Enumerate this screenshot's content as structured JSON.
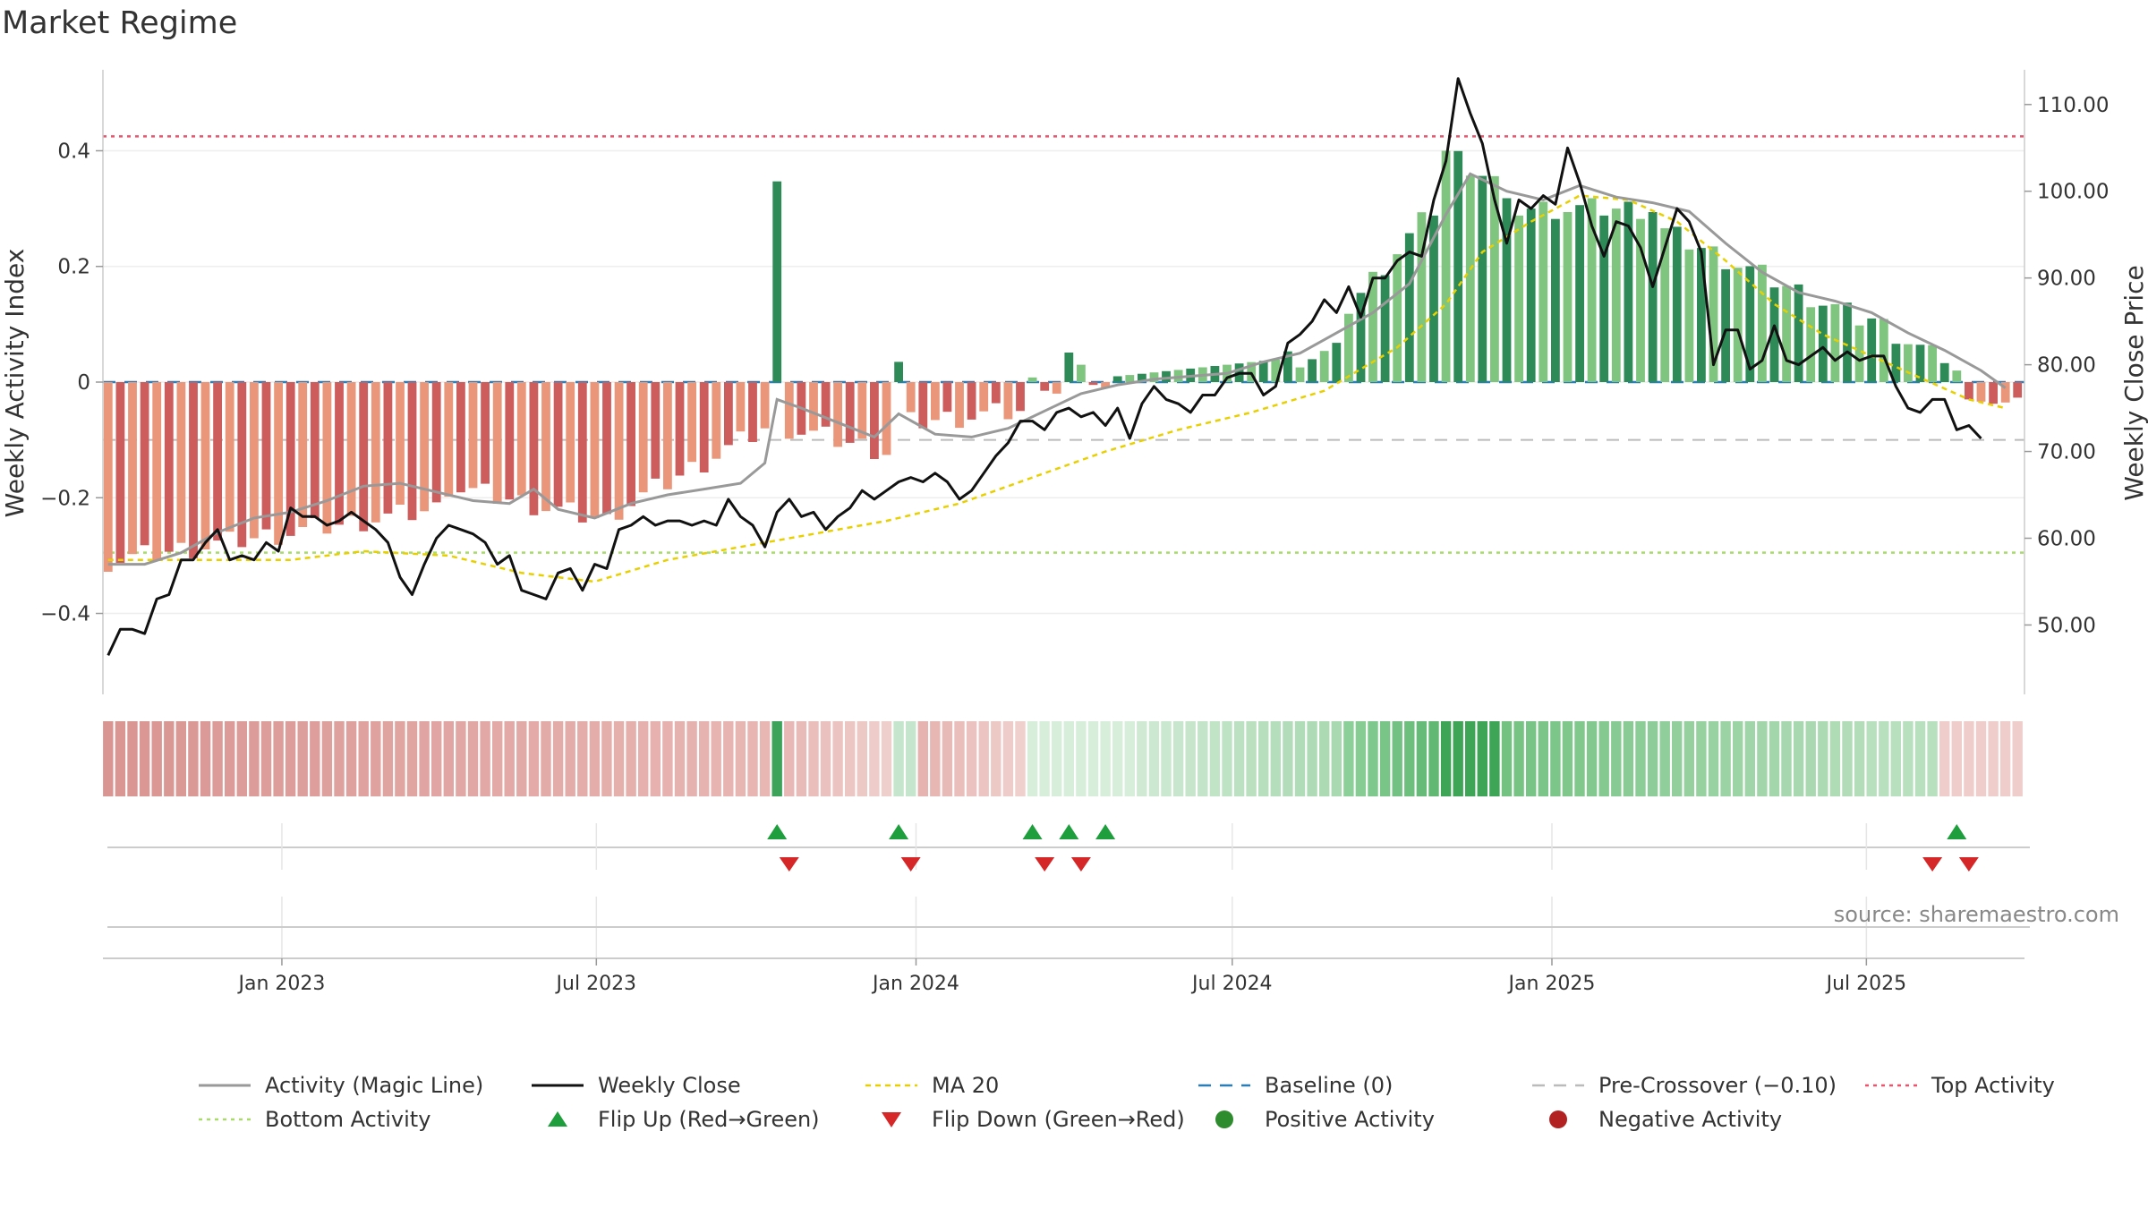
{
  "title": "Market Regime",
  "source": "source: sharemaestro.com",
  "colors": {
    "green_dark": "#2e8b57",
    "green_light": "#7fc47f",
    "red_dark": "#cd5c5c",
    "red_light": "#e9967a",
    "close": "#111111",
    "magic": "#999999",
    "ma20": "#e8d000",
    "baseline": "#2a7fb8",
    "precross": "#bbbbbb",
    "top": "#e8556d",
    "bottom": "#a8db6a",
    "flip_up": "#1e9e3c",
    "flip_down": "#d62728"
  },
  "chart_data": {
    "type": "bar",
    "title": "Market Regime",
    "ylabel_left": "Weekly Activity Index",
    "ylabel_right": "Weekly Close Price",
    "ylim_left": [
      -0.54,
      0.54
    ],
    "ylim_right": [
      42,
      114
    ],
    "yticks_left": [
      {
        "v": 0.4,
        "label": "0.4"
      },
      {
        "v": 0.2,
        "label": "0.2"
      },
      {
        "v": 0,
        "label": "0"
      },
      {
        "v": -0.2,
        "label": "−0.2"
      },
      {
        "v": -0.4,
        "label": "−0.4"
      }
    ],
    "yticks_right": [
      {
        "v": 110,
        "label": "110.00"
      },
      {
        "v": 100,
        "label": "100.00"
      },
      {
        "v": 90,
        "label": "90.00"
      },
      {
        "v": 80,
        "label": "80.00"
      },
      {
        "v": 70,
        "label": "70.00"
      },
      {
        "v": 60,
        "label": "60.00"
      },
      {
        "v": 50,
        "label": "50.00"
      }
    ],
    "xticks": [
      {
        "date": "2023-01-01",
        "label": "Jan 2023"
      },
      {
        "date": "2023-07-01",
        "label": "Jul 2023"
      },
      {
        "date": "2024-01-01",
        "label": "Jan 2024"
      },
      {
        "date": "2024-07-01",
        "label": "Jul 2024"
      },
      {
        "date": "2025-01-01",
        "label": "Jan 2025"
      },
      {
        "date": "2025-07-01",
        "label": "Jul 2025"
      }
    ],
    "xrange": [
      "2022-09-20",
      "2025-09-30"
    ],
    "top_activity": 0.425,
    "bottom_activity": -0.295,
    "baseline": 0,
    "pre_crossover": -0.1,
    "activity_segments": [
      {
        "from": "2022-09-23",
        "to": "2023-03-31",
        "start": -0.31,
        "end": -0.22
      },
      {
        "from": "2023-04-07",
        "to": "2023-07-07",
        "start": -0.18,
        "end": -0.24
      },
      {
        "from": "2023-07-14",
        "to": "2023-10-06",
        "start": -0.22,
        "end": -0.08
      },
      {
        "from": "2023-10-13",
        "to": "2023-10-13",
        "start": 0.335,
        "end": 0.335
      },
      {
        "from": "2023-10-20",
        "to": "2023-12-15",
        "start": -0.08,
        "end": -0.12
      },
      {
        "from": "2023-12-22",
        "to": "2023-12-22",
        "start": 0.035,
        "end": 0.035
      },
      {
        "from": "2023-12-29",
        "to": "2024-03-01",
        "start": -0.07,
        "end": -0.05
      },
      {
        "from": "2024-03-08",
        "to": "2024-03-08",
        "start": 0.008,
        "end": 0.008
      },
      {
        "from": "2024-03-15",
        "to": "2024-03-22",
        "start": -0.015,
        "end": -0.02
      },
      {
        "from": "2024-03-29",
        "to": "2024-04-05",
        "start": 0.045,
        "end": 0.03
      },
      {
        "from": "2024-04-12",
        "to": "2024-04-19",
        "start": -0.005,
        "end": -0.01
      },
      {
        "from": "2024-04-26",
        "to": "2024-08-30",
        "start": 0.01,
        "end": 0.05
      },
      {
        "from": "2024-09-06",
        "to": "2024-10-25",
        "start": 0.13,
        "end": 0.3
      },
      {
        "from": "2024-11-01",
        "to": "2024-11-29",
        "start": 0.4,
        "end": 0.35
      },
      {
        "from": "2024-12-06",
        "to": "2025-02-28",
        "start": 0.3,
        "end": 0.3
      },
      {
        "from": "2025-03-07",
        "to": "2025-06-27",
        "start": 0.26,
        "end": 0.11
      },
      {
        "from": "2025-07-04",
        "to": "2025-08-22",
        "start": 0.11,
        "end": 0.02
      },
      {
        "from": "2025-08-29",
        "to": "2025-09-26",
        "start": -0.03,
        "end": -0.045
      }
    ],
    "weekly_close": [
      [
        "2022-09-23",
        46.5
      ],
      [
        "2022-09-30",
        49.5
      ],
      [
        "2022-10-07",
        49.5
      ],
      [
        "2022-10-14",
        49
      ],
      [
        "2022-10-21",
        53
      ],
      [
        "2022-10-28",
        53.5
      ],
      [
        "2022-11-04",
        57.5
      ],
      [
        "2022-11-11",
        57.5
      ],
      [
        "2022-11-18",
        59.5
      ],
      [
        "2022-11-25",
        61
      ],
      [
        "2022-12-02",
        57.5
      ],
      [
        "2022-12-09",
        58
      ],
      [
        "2022-12-16",
        57.5
      ],
      [
        "2022-12-23",
        59.5
      ],
      [
        "2022-12-30",
        58.5
      ],
      [
        "2023-01-06",
        63.5
      ],
      [
        "2023-01-13",
        62.5
      ],
      [
        "2023-01-20",
        62.5
      ],
      [
        "2023-01-27",
        61.5
      ],
      [
        "2023-02-03",
        62
      ],
      [
        "2023-02-10",
        63
      ],
      [
        "2023-02-17",
        62
      ],
      [
        "2023-02-24",
        61
      ],
      [
        "2023-03-03",
        59.5
      ],
      [
        "2023-03-10",
        55.5
      ],
      [
        "2023-03-17",
        53.5
      ],
      [
        "2023-03-24",
        57
      ],
      [
        "2023-03-31",
        60
      ],
      [
        "2023-04-07",
        61.5
      ],
      [
        "2023-04-14",
        61
      ],
      [
        "2023-04-21",
        60.5
      ],
      [
        "2023-04-28",
        59.5
      ],
      [
        "2023-05-05",
        57
      ],
      [
        "2023-05-12",
        58
      ],
      [
        "2023-05-19",
        54
      ],
      [
        "2023-05-26",
        53.5
      ],
      [
        "2023-06-02",
        53
      ],
      [
        "2023-06-09",
        56
      ],
      [
        "2023-06-16",
        56.5
      ],
      [
        "2023-06-23",
        54
      ],
      [
        "2023-06-30",
        57
      ],
      [
        "2023-07-07",
        56.5
      ],
      [
        "2023-07-14",
        61
      ],
      [
        "2023-07-21",
        61.5
      ],
      [
        "2023-07-28",
        62.5
      ],
      [
        "2023-08-04",
        61.5
      ],
      [
        "2023-08-11",
        62
      ],
      [
        "2023-08-18",
        62
      ],
      [
        "2023-08-25",
        61.5
      ],
      [
        "2023-09-01",
        62
      ],
      [
        "2023-09-08",
        61.5
      ],
      [
        "2023-09-15",
        64.5
      ],
      [
        "2023-09-22",
        62.5
      ],
      [
        "2023-09-29",
        61.5
      ],
      [
        "2023-10-06",
        59
      ],
      [
        "2023-10-13",
        63
      ],
      [
        "2023-10-20",
        64.5
      ],
      [
        "2023-10-27",
        62.5
      ],
      [
        "2023-11-03",
        63
      ],
      [
        "2023-11-10",
        61
      ],
      [
        "2023-11-17",
        62.5
      ],
      [
        "2023-11-24",
        63.5
      ],
      [
        "2023-12-01",
        65.5
      ],
      [
        "2023-12-08",
        64.5
      ],
      [
        "2023-12-15",
        65.5
      ],
      [
        "2023-12-22",
        66.5
      ],
      [
        "2023-12-29",
        67
      ],
      [
        "2024-01-05",
        66.5
      ],
      [
        "2024-01-12",
        67.5
      ],
      [
        "2024-01-19",
        66.5
      ],
      [
        "2024-01-26",
        64.5
      ],
      [
        "2024-02-02",
        65.5
      ],
      [
        "2024-02-09",
        67.5
      ],
      [
        "2024-02-16",
        69.5
      ],
      [
        "2024-02-23",
        71
      ],
      [
        "2024-03-01",
        73.5
      ],
      [
        "2024-03-08",
        73.5
      ],
      [
        "2024-03-15",
        72.5
      ],
      [
        "2024-03-22",
        74.5
      ],
      [
        "2024-03-29",
        75
      ],
      [
        "2024-04-05",
        74
      ],
      [
        "2024-04-12",
        74.5
      ],
      [
        "2024-04-19",
        73
      ],
      [
        "2024-04-26",
        75
      ],
      [
        "2024-05-03",
        71.5
      ],
      [
        "2024-05-10",
        75.5
      ],
      [
        "2024-05-17",
        77.5
      ],
      [
        "2024-05-24",
        76
      ],
      [
        "2024-05-31",
        75.5
      ],
      [
        "2024-06-07",
        74.5
      ],
      [
        "2024-06-14",
        76.5
      ],
      [
        "2024-06-21",
        76.5
      ],
      [
        "2024-06-28",
        78.5
      ],
      [
        "2024-07-05",
        79
      ],
      [
        "2024-07-12",
        79
      ],
      [
        "2024-07-19",
        76.5
      ],
      [
        "2024-07-26",
        77.5
      ],
      [
        "2024-08-02",
        82.5
      ],
      [
        "2024-08-09",
        83.5
      ],
      [
        "2024-08-16",
        85
      ],
      [
        "2024-08-23",
        87.5
      ],
      [
        "2024-08-30",
        86
      ],
      [
        "2024-09-06",
        89
      ],
      [
        "2024-09-13",
        85.5
      ],
      [
        "2024-09-20",
        90
      ],
      [
        "2024-09-27",
        90
      ],
      [
        "2024-10-04",
        92
      ],
      [
        "2024-10-11",
        93
      ],
      [
        "2024-10-18",
        92.5
      ],
      [
        "2024-10-25",
        99
      ],
      [
        "2024-11-01",
        103.5
      ],
      [
        "2024-11-08",
        113
      ],
      [
        "2024-11-15",
        109
      ],
      [
        "2024-11-22",
        105.5
      ],
      [
        "2024-11-29",
        99
      ],
      [
        "2024-12-06",
        94
      ],
      [
        "2024-12-13",
        99
      ],
      [
        "2024-12-20",
        98
      ],
      [
        "2024-12-27",
        99.5
      ],
      [
        "2025-01-03",
        98.5
      ],
      [
        "2025-01-10",
        105
      ],
      [
        "2025-01-17",
        101
      ],
      [
        "2025-01-24",
        96
      ],
      [
        "2025-01-31",
        92.5
      ],
      [
        "2025-02-07",
        96.5
      ],
      [
        "2025-02-14",
        96
      ],
      [
        "2025-02-21",
        93.5
      ],
      [
        "2025-02-28",
        89
      ],
      [
        "2025-03-07",
        93.5
      ],
      [
        "2025-03-14",
        98
      ],
      [
        "2025-03-21",
        96.5
      ],
      [
        "2025-03-28",
        93
      ],
      [
        "2025-04-04",
        80
      ],
      [
        "2025-04-11",
        84
      ],
      [
        "2025-04-18",
        84
      ],
      [
        "2025-04-25",
        79.5
      ],
      [
        "2025-05-02",
        80.5
      ],
      [
        "2025-05-09",
        84.5
      ],
      [
        "2025-05-16",
        80.5
      ],
      [
        "2025-05-23",
        80
      ],
      [
        "2025-05-30",
        81
      ],
      [
        "2025-06-06",
        82
      ],
      [
        "2025-06-13",
        80.5
      ],
      [
        "2025-06-20",
        81.5
      ],
      [
        "2025-06-27",
        80.5
      ],
      [
        "2025-07-04",
        81
      ],
      [
        "2025-07-11",
        81
      ],
      [
        "2025-07-18",
        77.5
      ],
      [
        "2025-07-25",
        75
      ],
      [
        "2025-08-01",
        74.5
      ],
      [
        "2025-08-08",
        76
      ],
      [
        "2025-08-15",
        76
      ],
      [
        "2025-08-22",
        72.5
      ],
      [
        "2025-08-29",
        73
      ],
      [
        "2025-09-05",
        71.5
      ]
    ],
    "magic_line": [
      [
        "2022-09-23",
        -0.315
      ],
      [
        "2022-10-14",
        -0.315
      ],
      [
        "2022-11-04",
        -0.295
      ],
      [
        "2022-11-25",
        -0.26
      ],
      [
        "2022-12-16",
        -0.235
      ],
      [
        "2023-01-06",
        -0.225
      ],
      [
        "2023-01-27",
        -0.205
      ],
      [
        "2023-02-17",
        -0.18
      ],
      [
        "2023-03-10",
        -0.175
      ],
      [
        "2023-03-31",
        -0.19
      ],
      [
        "2023-04-21",
        -0.205
      ],
      [
        "2023-05-12",
        -0.21
      ],
      [
        "2023-05-26",
        -0.185
      ],
      [
        "2023-06-09",
        -0.22
      ],
      [
        "2023-06-30",
        -0.235
      ],
      [
        "2023-07-21",
        -0.21
      ],
      [
        "2023-08-11",
        -0.195
      ],
      [
        "2023-09-01",
        -0.185
      ],
      [
        "2023-09-22",
        -0.175
      ],
      [
        "2023-10-06",
        -0.14
      ],
      [
        "2023-10-13",
        -0.03
      ],
      [
        "2023-10-27",
        -0.045
      ],
      [
        "2023-11-17",
        -0.07
      ],
      [
        "2023-12-08",
        -0.095
      ],
      [
        "2023-12-22",
        -0.055
      ],
      [
        "2024-01-12",
        -0.09
      ],
      [
        "2024-02-02",
        -0.095
      ],
      [
        "2024-02-23",
        -0.08
      ],
      [
        "2024-03-15",
        -0.05
      ],
      [
        "2024-04-05",
        -0.02
      ],
      [
        "2024-04-26",
        -0.005
      ],
      [
        "2024-05-17",
        0.005
      ],
      [
        "2024-06-07",
        0.01
      ],
      [
        "2024-06-28",
        0.015
      ],
      [
        "2024-07-19",
        0.035
      ],
      [
        "2024-08-09",
        0.05
      ],
      [
        "2024-08-30",
        0.085
      ],
      [
        "2024-09-20",
        0.12
      ],
      [
        "2024-10-11",
        0.17
      ],
      [
        "2024-11-01",
        0.29
      ],
      [
        "2024-11-15",
        0.36
      ],
      [
        "2024-12-06",
        0.33
      ],
      [
        "2024-12-27",
        0.315
      ],
      [
        "2025-01-17",
        0.34
      ],
      [
        "2025-02-07",
        0.32
      ],
      [
        "2025-02-28",
        0.31
      ],
      [
        "2025-03-21",
        0.295
      ],
      [
        "2025-04-11",
        0.24
      ],
      [
        "2025-05-02",
        0.19
      ],
      [
        "2025-05-23",
        0.155
      ],
      [
        "2025-06-13",
        0.14
      ],
      [
        "2025-07-04",
        0.12
      ],
      [
        "2025-07-25",
        0.085
      ],
      [
        "2025-08-15",
        0.055
      ],
      [
        "2025-09-05",
        0.02
      ],
      [
        "2025-09-19",
        -0.01
      ]
    ],
    "ma20": [
      [
        "2022-09-23",
        57.5
      ],
      [
        "2022-11-04",
        57.5
      ],
      [
        "2023-01-06",
        57.5
      ],
      [
        "2023-02-17",
        58.5
      ],
      [
        "2023-04-07",
        58
      ],
      [
        "2023-05-19",
        56
      ],
      [
        "2023-06-30",
        55
      ],
      [
        "2023-08-11",
        57.5
      ],
      [
        "2023-09-22",
        59
      ],
      [
        "2023-11-03",
        60.5
      ],
      [
        "2023-12-15",
        62
      ],
      [
        "2024-01-26",
        64
      ],
      [
        "2024-03-08",
        67
      ],
      [
        "2024-04-19",
        70
      ],
      [
        "2024-05-31",
        72.5
      ],
      [
        "2024-07-12",
        74.5
      ],
      [
        "2024-08-23",
        77
      ],
      [
        "2024-10-04",
        82
      ],
      [
        "2024-11-01",
        87
      ],
      [
        "2024-11-22",
        93
      ],
      [
        "2024-12-20",
        96.5
      ],
      [
        "2025-01-17",
        99.5
      ],
      [
        "2025-02-14",
        99
      ],
      [
        "2025-03-14",
        96.5
      ],
      [
        "2025-04-11",
        92
      ],
      [
        "2025-05-09",
        87
      ],
      [
        "2025-06-06",
        83.5
      ],
      [
        "2025-07-04",
        81
      ],
      [
        "2025-08-01",
        78.5
      ],
      [
        "2025-08-29",
        76
      ],
      [
        "2025-09-19",
        75
      ]
    ],
    "regime_strip": [
      {
        "from": "2022-09-23",
        "to": "2023-10-06",
        "color": "#d99592",
        "to_color": "#e8b6b3"
      },
      {
        "from": "2023-10-13",
        "to": "2023-10-13",
        "color": "#3da35a"
      },
      {
        "from": "2023-10-20",
        "to": "2023-12-15",
        "color": "#e7b8b5",
        "to_color": "#efcfcc"
      },
      {
        "from": "2023-12-22",
        "to": "2023-12-29",
        "color": "#c5e6cc"
      },
      {
        "from": "2024-01-05",
        "to": "2024-03-01",
        "color": "#e6b3b0",
        "to_color": "#efd0cd"
      },
      {
        "from": "2024-03-08",
        "to": "2024-05-03",
        "color": "#d7efda"
      },
      {
        "from": "2024-05-10",
        "to": "2024-08-30",
        "color": "#cfe9d3",
        "to_color": "#a9d9b1"
      },
      {
        "from": "2024-09-06",
        "to": "2024-10-25",
        "color": "#8ccf98",
        "to_color": "#60b873"
      },
      {
        "from": "2024-11-01",
        "to": "2024-11-29",
        "color": "#3ea557"
      },
      {
        "from": "2024-12-06",
        "to": "2025-06-27",
        "color": "#74c282",
        "to_color": "#b3ddb9"
      },
      {
        "from": "2025-07-04",
        "to": "2025-08-08",
        "color": "#b8dfbe"
      },
      {
        "from": "2025-08-15",
        "to": "2025-09-26",
        "color": "#efcdcb"
      }
    ],
    "flip_up": [
      "2023-10-13",
      "2023-12-22",
      "2024-03-08",
      "2024-03-29",
      "2024-04-19",
      "2025-08-22"
    ],
    "flip_down": [
      "2023-10-20",
      "2023-12-29",
      "2024-03-15",
      "2024-04-05",
      "2025-08-08",
      "2025-08-29"
    ]
  },
  "legend": [
    {
      "key": "magic",
      "label": "Activity (Magic Line)"
    },
    {
      "key": "close",
      "label": "Weekly Close"
    },
    {
      "key": "ma20",
      "label": "MA 20"
    },
    {
      "key": "baseline",
      "label": "Baseline (0)"
    },
    {
      "key": "precross",
      "label": "Pre-Crossover (−0.10)"
    },
    {
      "key": "top",
      "label": "Top Activity"
    },
    {
      "key": "bottom",
      "label": "Bottom Activity"
    },
    {
      "key": "flip_up",
      "label": "Flip Up (Red→Green)"
    },
    {
      "key": "flip_down",
      "label": "Flip Down (Green→Red)"
    },
    {
      "key": "positive",
      "label": "Positive Activity"
    },
    {
      "key": "negative",
      "label": "Negative Activity"
    }
  ]
}
